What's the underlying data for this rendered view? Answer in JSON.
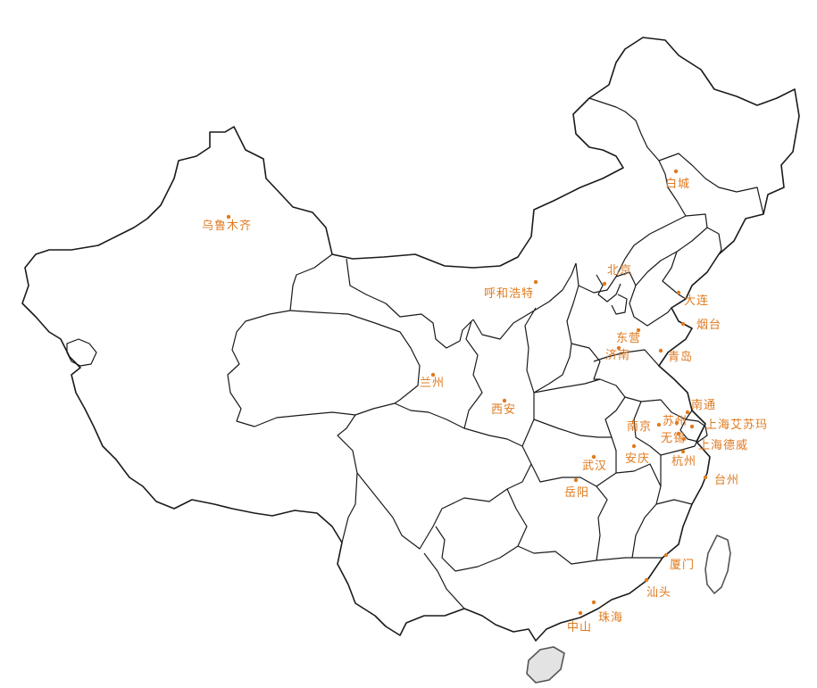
{
  "colors": {
    "city": "#e07a1f",
    "border": "#1a1a1a",
    "island_fill": "#e3e3e3",
    "island_stroke": "#555555"
  },
  "cities": [
    {
      "id": "baicheng",
      "name": "白城"
    },
    {
      "id": "urumqi",
      "name": "乌鲁木齐"
    },
    {
      "id": "beijing",
      "name": "北京"
    },
    {
      "id": "hohhot",
      "name": "呼和浩特"
    },
    {
      "id": "dalian",
      "name": "大连"
    },
    {
      "id": "dongying",
      "name": "东营"
    },
    {
      "id": "yantai",
      "name": "烟台"
    },
    {
      "id": "jinan",
      "name": "济南"
    },
    {
      "id": "qingdao",
      "name": "青岛"
    },
    {
      "id": "lanzhou",
      "name": "兰州"
    },
    {
      "id": "xian",
      "name": "西安"
    },
    {
      "id": "nantong",
      "name": "南通"
    },
    {
      "id": "nanjing",
      "name": "南京"
    },
    {
      "id": "suzhou",
      "name": "苏州"
    },
    {
      "id": "shanghai-essilor",
      "name": "上海艾苏玛"
    },
    {
      "id": "wuxi",
      "name": "无锡"
    },
    {
      "id": "shanghai-dewei",
      "name": "上海德威"
    },
    {
      "id": "hangzhou",
      "name": "杭州"
    },
    {
      "id": "wuhan",
      "name": "武汉"
    },
    {
      "id": "anqing",
      "name": "安庆"
    },
    {
      "id": "yueyang",
      "name": "岳阳"
    },
    {
      "id": "taizhou",
      "name": "台州"
    },
    {
      "id": "xiamen",
      "name": "厦门"
    },
    {
      "id": "shantou",
      "name": "汕头"
    },
    {
      "id": "zhuhai",
      "name": "珠海"
    },
    {
      "id": "zhongshan",
      "name": "中山"
    }
  ]
}
